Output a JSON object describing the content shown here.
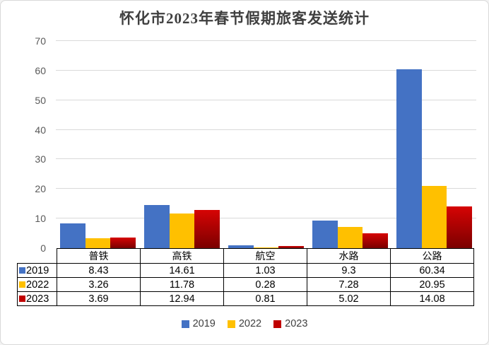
{
  "window": {
    "title": "怀化市2023年春节假期旅客发送统计"
  },
  "chart_data": {
    "type": "bar",
    "title": "怀化市2023年春节假期旅客发送统计",
    "categories": [
      "普铁",
      "高铁",
      "航空",
      "水路",
      "公路"
    ],
    "series": [
      {
        "name": "2019",
        "color": "#4472C4",
        "values": [
          8.43,
          14.61,
          1.03,
          9.3,
          60.34
        ]
      },
      {
        "name": "2022",
        "color": "#FFC000",
        "values": [
          3.26,
          11.78,
          0.28,
          7.28,
          20.95
        ]
      },
      {
        "name": "2023",
        "color": "#C00000",
        "bar_gradient": [
          "#D60404",
          "#7B0000"
        ],
        "values": [
          3.69,
          12.94,
          0.81,
          5.02,
          14.08
        ]
      }
    ],
    "ylim": [
      0,
      70
    ],
    "yticks": [
      0,
      10,
      20,
      30,
      40,
      50,
      60,
      70
    ],
    "grid": true,
    "legend_position": "bottom",
    "data_table": true,
    "colors": {
      "gridline": "#D9D9D9",
      "axis_label": "#595959",
      "table_border": "#000000",
      "title": "#3F3F3F"
    }
  }
}
